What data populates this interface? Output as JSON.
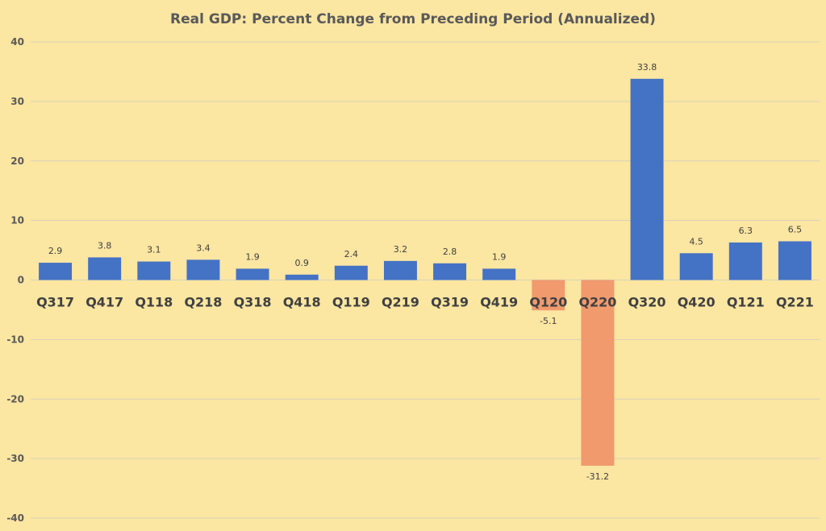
{
  "chart_data": {
    "type": "bar",
    "title": "Real GDP: Percent Change from Preceding Period (Annualized)",
    "xlabel": "",
    "ylabel": "",
    "ylim": [
      -40,
      40
    ],
    "yticks": [
      40,
      30,
      20,
      10,
      0,
      -10,
      -20,
      -30,
      -40
    ],
    "grid": true,
    "legend": "none",
    "categories": [
      "Q317",
      "Q417",
      "Q118",
      "Q218",
      "Q318",
      "Q418",
      "Q119",
      "Q219",
      "Q319",
      "Q419",
      "Q120",
      "Q220",
      "Q320",
      "Q420",
      "Q121",
      "Q221"
    ],
    "values": [
      2.9,
      3.8,
      3.1,
      3.4,
      1.9,
      0.9,
      2.4,
      3.2,
      2.8,
      1.9,
      -5.1,
      -31.2,
      33.8,
      4.5,
      6.3,
      6.5
    ],
    "colors": {
      "positive": "#4472c4",
      "negative": "#f09a6e"
    }
  }
}
